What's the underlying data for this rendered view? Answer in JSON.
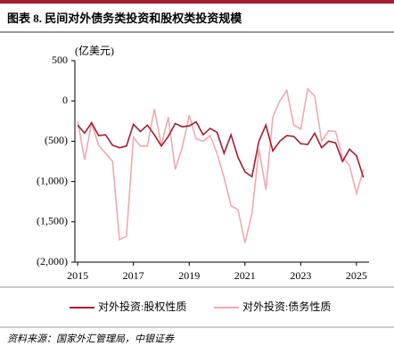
{
  "chart_data": {
    "type": "line",
    "title": "图表 8. 民间对外债务类投资和股权类投资规模",
    "y_unit": "(亿美元)",
    "source": "资料来源：国家外汇管理局，中银证券",
    "x": [
      2015,
      2015.25,
      2015.5,
      2015.75,
      2016,
      2016.25,
      2016.5,
      2016.75,
      2017,
      2017.25,
      2017.5,
      2017.75,
      2018,
      2018.25,
      2018.5,
      2018.75,
      2019,
      2019.25,
      2019.5,
      2019.75,
      2020,
      2020.25,
      2020.5,
      2020.75,
      2021,
      2021.25,
      2021.5,
      2021.75,
      2022,
      2022.25,
      2022.5,
      2022.75,
      2023,
      2023.25,
      2023.5,
      2023.75,
      2024,
      2024.25,
      2024.5,
      2024.75,
      2025,
      2025.25
    ],
    "series": [
      {
        "name": "对外投资:股权性质",
        "color": "#a51c30",
        "values": [
          -300,
          -400,
          -270,
          -430,
          -420,
          -550,
          -580,
          -560,
          -290,
          -380,
          -300,
          -420,
          -560,
          -440,
          -280,
          -320,
          -310,
          -260,
          -420,
          -340,
          -390,
          -650,
          -420,
          -700,
          -880,
          -940,
          -500,
          -300,
          -620,
          -500,
          -430,
          -440,
          -530,
          -540,
          -400,
          -580,
          -500,
          -520,
          -750,
          -600,
          -680,
          -950
        ]
      },
      {
        "name": "对外投资:债务性质",
        "color": "#f2a9ae",
        "values": [
          -250,
          -730,
          -270,
          -550,
          -650,
          -750,
          -1720,
          -1680,
          -450,
          -560,
          -560,
          -100,
          -550,
          -200,
          -850,
          -580,
          -180,
          -470,
          -500,
          -430,
          -650,
          -950,
          -1300,
          -1350,
          -1760,
          -1400,
          -600,
          -1100,
          -200,
          0,
          130,
          -300,
          -350,
          150,
          60,
          -500,
          -370,
          -380,
          -700,
          -800,
          -1150,
          -850
        ]
      }
    ],
    "xlim": [
      2014.9,
      2025.45
    ],
    "xticks": [
      2015,
      2017,
      2019,
      2021,
      2023,
      2025
    ],
    "ylim": [
      -2000,
      500
    ],
    "yticks": [
      {
        "value": -2000,
        "label": "(2,000)"
      },
      {
        "value": -1500,
        "label": "(1,500)"
      },
      {
        "value": -1000,
        "label": "(1,000)"
      },
      {
        "value": -500,
        "label": "(500)"
      },
      0,
      500
    ]
  }
}
